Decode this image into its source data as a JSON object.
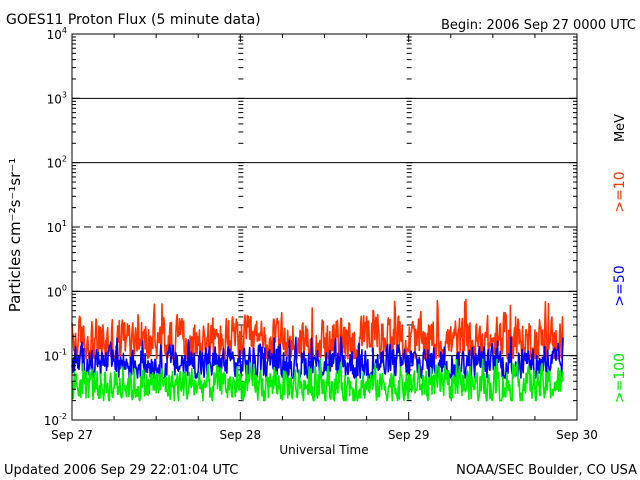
{
  "header": {
    "title": "GOES11 Proton Flux (5 minute data)",
    "begin": "Begin: 2006 Sep 27 0000 UTC"
  },
  "footer": {
    "updated": "Updated 2006 Sep 29 22:01:04 UTC",
    "credit": "NOAA/SEC Boulder, CO USA"
  },
  "chart_data": {
    "type": "line",
    "title": "GOES11 Proton Flux (5 minute data)",
    "xlabel": "Universal Time",
    "ylabel": "Particles cm⁻²s⁻¹sr⁻¹",
    "y_scale": "log",
    "ylim": [
      0.01,
      10000
    ],
    "y_ticks": [
      {
        "base": "10",
        "exp": "4",
        "value": 10000
      },
      {
        "base": "10",
        "exp": "3",
        "value": 1000
      },
      {
        "base": "10",
        "exp": "2",
        "value": 100
      },
      {
        "base": "10",
        "exp": "1",
        "value": 10
      },
      {
        "base": "10",
        "exp": "0",
        "value": 1
      },
      {
        "base": "10",
        "exp": "-1",
        "value": 0.1
      },
      {
        "base": "10",
        "exp": "-2",
        "value": 0.01
      }
    ],
    "x_ticks": [
      "Sep 27",
      "Sep 28",
      "Sep 29",
      "Sep 30"
    ],
    "x_range": [
      "2006-09-27T00:00",
      "2006-09-30T00:00"
    ],
    "data_end": "2006-09-29T22:00",
    "threshold_lines": [
      {
        "value": 1000,
        "style": "solid"
      },
      {
        "value": 100,
        "style": "solid"
      },
      {
        "value": 10,
        "style": "dashed"
      },
      {
        "value": 1,
        "style": "solid"
      },
      {
        "value": 0.1,
        "style": "solid"
      }
    ],
    "unit_label": "MeV",
    "series": [
      {
        "name": ">=10",
        "color": "#ff3300",
        "mean": 0.16,
        "min": 0.09,
        "max": 0.75
      },
      {
        "name": ">=50",
        "color": "#0000ff",
        "mean": 0.075,
        "min": 0.045,
        "max": 0.2
      },
      {
        "name": ">=100",
        "color": "#00ee00",
        "mean": 0.035,
        "min": 0.02,
        "max": 0.09
      }
    ]
  }
}
